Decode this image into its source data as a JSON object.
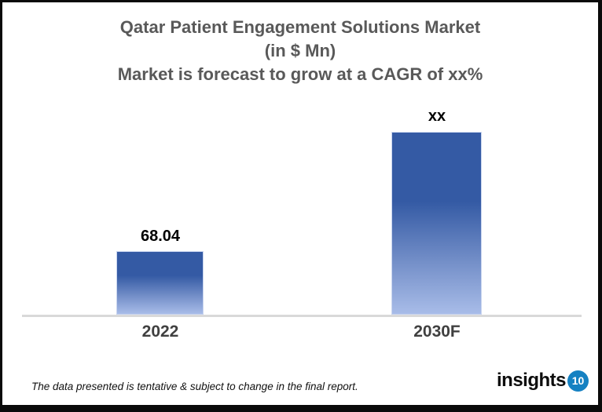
{
  "title": {
    "line1": "Qatar Patient Engagement Solutions Market",
    "line2": "(in $ Mn)",
    "line3": "Market is forecast to grow at a CAGR of xx%"
  },
  "chart_data": {
    "type": "bar",
    "title": "Qatar Patient Engagement Solutions Market (in $ Mn)",
    "subtitle": "Market is forecast to grow at a CAGR of xx%",
    "categories": [
      "2022",
      "2030F"
    ],
    "values": [
      68.04,
      null
    ],
    "value_labels": [
      "68.04",
      "xx"
    ],
    "xlabel": "",
    "ylabel": "",
    "grid": false,
    "legend": false,
    "bar_gradient_top_color": "#345aa4",
    "bar_gradient_bottom_color": "#a8bce8",
    "axis_line_color": "#d9d9d9",
    "title_color": "#595959",
    "category_label_color": "#404040",
    "value_label_color": "#000000"
  },
  "footer": {
    "disclaimer": "The data presented is tentative & subject to change in the final report.",
    "logo_text": "insights",
    "logo_number": "10",
    "logo_circle_color": "#1581c2"
  }
}
